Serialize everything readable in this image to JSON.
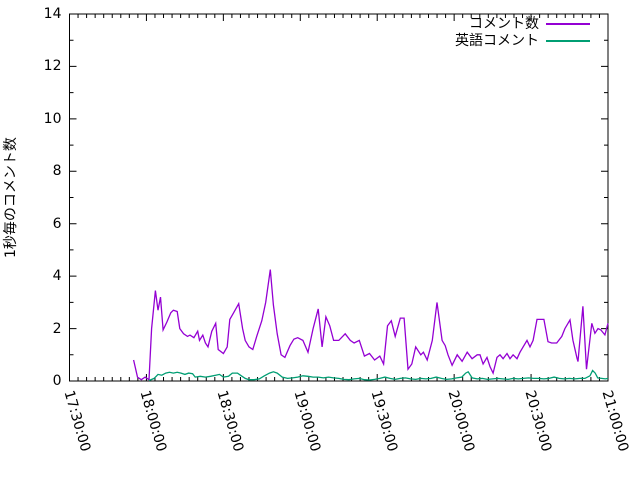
{
  "chart_data": {
    "type": "line",
    "title": "",
    "xlabel": "",
    "ylabel": "1秒毎のコメント数",
    "background_color": "#ffffff",
    "axis_color": "#000000",
    "grid": false,
    "legend_position": "top-right-inside",
    "ylim": [
      0,
      14
    ],
    "y_ticks": [
      0,
      2,
      4,
      6,
      8,
      10,
      12,
      14
    ],
    "y_minor_step": 1,
    "xlim_minutes_from_start": [
      0,
      210
    ],
    "x_tick_interval_minutes": 30,
    "x_minor_step_minutes": 3.3333,
    "x_ticks": [
      {
        "m": 0,
        "label": "17:30:00"
      },
      {
        "m": 30,
        "label": "18:00:00"
      },
      {
        "m": 60,
        "label": "18:30:00"
      },
      {
        "m": 90,
        "label": "19:00:00"
      },
      {
        "m": 120,
        "label": "19:30:00"
      },
      {
        "m": 150,
        "label": "20:00:00"
      },
      {
        "m": 180,
        "label": "20:30:00"
      },
      {
        "m": 210,
        "label": "21:00:00"
      }
    ],
    "series": [
      {
        "name": "コメント数",
        "color": "#9400d3",
        "points_minutes_value": [
          [
            25,
            0.8
          ],
          [
            26.5,
            0.15
          ],
          [
            28,
            0.05
          ],
          [
            29.5,
            0.15
          ],
          [
            31,
            0.05
          ],
          [
            32,
            2.0
          ],
          [
            33.5,
            3.45
          ],
          [
            34.5,
            2.7
          ],
          [
            35.5,
            3.2
          ],
          [
            36.5,
            1.95
          ],
          [
            38,
            2.25
          ],
          [
            39.5,
            2.6
          ],
          [
            40.5,
            2.7
          ],
          [
            42,
            2.65
          ],
          [
            43,
            2.0
          ],
          [
            44.5,
            1.8
          ],
          [
            46,
            1.7
          ],
          [
            47,
            1.75
          ],
          [
            48.5,
            1.65
          ],
          [
            50,
            1.9
          ],
          [
            50.7,
            1.55
          ],
          [
            52,
            1.75
          ],
          [
            53,
            1.45
          ],
          [
            54,
            1.3
          ],
          [
            55.5,
            1.9
          ],
          [
            57,
            2.2
          ],
          [
            58,
            1.2
          ],
          [
            60,
            1.05
          ],
          [
            61.5,
            1.3
          ],
          [
            62.5,
            2.35
          ],
          [
            64,
            2.6
          ],
          [
            66,
            2.95
          ],
          [
            67.5,
            2.0
          ],
          [
            68.5,
            1.55
          ],
          [
            70,
            1.3
          ],
          [
            71.5,
            1.2
          ],
          [
            73,
            1.7
          ],
          [
            75,
            2.3
          ],
          [
            76.5,
            3.0
          ],
          [
            78.3,
            4.25
          ],
          [
            79.5,
            2.9
          ],
          [
            81,
            1.8
          ],
          [
            82.5,
            1.0
          ],
          [
            84,
            0.9
          ],
          [
            86,
            1.35
          ],
          [
            87.5,
            1.6
          ],
          [
            89,
            1.65
          ],
          [
            91,
            1.55
          ],
          [
            93,
            1.1
          ],
          [
            95,
            2.0
          ],
          [
            97,
            2.75
          ],
          [
            98.5,
            1.3
          ],
          [
            100,
            2.45
          ],
          [
            101.5,
            2.1
          ],
          [
            103,
            1.55
          ],
          [
            105,
            1.55
          ],
          [
            107.5,
            1.8
          ],
          [
            109.5,
            1.55
          ],
          [
            111,
            1.45
          ],
          [
            113,
            1.55
          ],
          [
            115,
            0.95
          ],
          [
            117,
            1.05
          ],
          [
            119,
            0.8
          ],
          [
            121,
            0.95
          ],
          [
            122.5,
            0.65
          ],
          [
            124,
            2.1
          ],
          [
            125.5,
            2.3
          ],
          [
            127,
            1.7
          ],
          [
            129,
            2.4
          ],
          [
            130.5,
            2.4
          ],
          [
            132,
            0.45
          ],
          [
            133.5,
            0.65
          ],
          [
            135,
            1.3
          ],
          [
            137,
            1.0
          ],
          [
            138,
            1.1
          ],
          [
            139.5,
            0.8
          ],
          [
            141.5,
            1.55
          ],
          [
            143.3,
            3.0
          ],
          [
            145.3,
            1.55
          ],
          [
            146.5,
            1.35
          ],
          [
            147.6,
            1.0
          ],
          [
            149.2,
            0.6
          ],
          [
            151.2,
            1.0
          ],
          [
            153.1,
            0.75
          ],
          [
            155.1,
            1.1
          ],
          [
            157,
            0.85
          ],
          [
            159,
            1.0
          ],
          [
            160.1,
            1.0
          ],
          [
            161.3,
            0.65
          ],
          [
            162.8,
            0.9
          ],
          [
            164,
            0.55
          ],
          [
            165.2,
            0.3
          ],
          [
            166.7,
            0.9
          ],
          [
            167.9,
            1.0
          ],
          [
            169.1,
            0.85
          ],
          [
            170.6,
            1.05
          ],
          [
            171.8,
            0.85
          ],
          [
            173,
            1.0
          ],
          [
            174.5,
            0.85
          ],
          [
            175.7,
            1.1
          ],
          [
            176.9,
            1.3
          ],
          [
            178.4,
            1.55
          ],
          [
            179.6,
            1.3
          ],
          [
            180.8,
            1.55
          ],
          [
            182.3,
            2.35
          ],
          [
            185,
            2.35
          ],
          [
            186.6,
            1.5
          ],
          [
            188,
            1.45
          ],
          [
            190,
            1.45
          ],
          [
            192,
            1.7
          ],
          [
            193.2,
            2.0
          ],
          [
            195.2,
            2.33
          ],
          [
            196.3,
            1.56
          ],
          [
            197.9,
            0.87
          ],
          [
            198.3,
            0.74
          ],
          [
            200.2,
            2.85
          ],
          [
            201.6,
            0.45
          ],
          [
            203.7,
            2.2
          ],
          [
            204.9,
            1.82
          ],
          [
            206.1,
            2.0
          ],
          [
            207.2,
            1.95
          ],
          [
            208.8,
            1.76
          ],
          [
            210,
            2.2
          ]
        ]
      },
      {
        "name": "英語コメント",
        "color": "#009e73",
        "points_minutes_value": [
          [
            31,
            0.02
          ],
          [
            33,
            0.1
          ],
          [
            34.5,
            0.25
          ],
          [
            36,
            0.22
          ],
          [
            37.5,
            0.3
          ],
          [
            39,
            0.33
          ],
          [
            40.5,
            0.3
          ],
          [
            42,
            0.33
          ],
          [
            43.5,
            0.3
          ],
          [
            45,
            0.25
          ],
          [
            46.5,
            0.3
          ],
          [
            48,
            0.28
          ],
          [
            49,
            0.15
          ],
          [
            51,
            0.18
          ],
          [
            53,
            0.15
          ],
          [
            55,
            0.18
          ],
          [
            57,
            0.22
          ],
          [
            58.5,
            0.25
          ],
          [
            60,
            0.15
          ],
          [
            62,
            0.18
          ],
          [
            63.5,
            0.3
          ],
          [
            65.5,
            0.3
          ],
          [
            67,
            0.2
          ],
          [
            68.5,
            0.1
          ],
          [
            70,
            0.05
          ],
          [
            72,
            0.05
          ],
          [
            74,
            0.08
          ],
          [
            76,
            0.2
          ],
          [
            78,
            0.3
          ],
          [
            79.5,
            0.35
          ],
          [
            81,
            0.3
          ],
          [
            83,
            0.15
          ],
          [
            85,
            0.1
          ],
          [
            87,
            0.12
          ],
          [
            89,
            0.15
          ],
          [
            91,
            0.2
          ],
          [
            93,
            0.18
          ],
          [
            95,
            0.15
          ],
          [
            97,
            0.15
          ],
          [
            99,
            0.12
          ],
          [
            101,
            0.15
          ],
          [
            103,
            0.12
          ],
          [
            105,
            0.1
          ],
          [
            107,
            0.06
          ],
          [
            109,
            0.05
          ],
          [
            111,
            0.08
          ],
          [
            113,
            0.1
          ],
          [
            115,
            0.05
          ],
          [
            117,
            0.04
          ],
          [
            119,
            0.06
          ],
          [
            121,
            0.1
          ],
          [
            123,
            0.15
          ],
          [
            125,
            0.1
          ],
          [
            127,
            0.06
          ],
          [
            129,
            0.1
          ],
          [
            131,
            0.12
          ],
          [
            133,
            0.08
          ],
          [
            135,
            0.06
          ],
          [
            137,
            0.1
          ],
          [
            139,
            0.08
          ],
          [
            141,
            0.1
          ],
          [
            143,
            0.15
          ],
          [
            145,
            0.1
          ],
          [
            147,
            0.06
          ],
          [
            149,
            0.08
          ],
          [
            151,
            0.12
          ],
          [
            153,
            0.15
          ],
          [
            154.5,
            0.3
          ],
          [
            155.5,
            0.35
          ],
          [
            157,
            0.12
          ],
          [
            159,
            0.08
          ],
          [
            161,
            0.1
          ],
          [
            163,
            0.06
          ],
          [
            165,
            0.08
          ],
          [
            167,
            0.1
          ],
          [
            169,
            0.08
          ],
          [
            171,
            0.06
          ],
          [
            173,
            0.1
          ],
          [
            175,
            0.08
          ],
          [
            177,
            0.1
          ],
          [
            179,
            0.12
          ],
          [
            181,
            0.1
          ],
          [
            183,
            0.1
          ],
          [
            185,
            0.08
          ],
          [
            187,
            0.1
          ],
          [
            189,
            0.15
          ],
          [
            191,
            0.1
          ],
          [
            193,
            0.08
          ],
          [
            195,
            0.1
          ],
          [
            197,
            0.08
          ],
          [
            199,
            0.1
          ],
          [
            201,
            0.1
          ],
          [
            203,
            0.2
          ],
          [
            204,
            0.4
          ],
          [
            205,
            0.3
          ],
          [
            206,
            0.12
          ],
          [
            207.5,
            0.1
          ],
          [
            209,
            0.08
          ],
          [
            210,
            0.1
          ]
        ]
      }
    ]
  }
}
